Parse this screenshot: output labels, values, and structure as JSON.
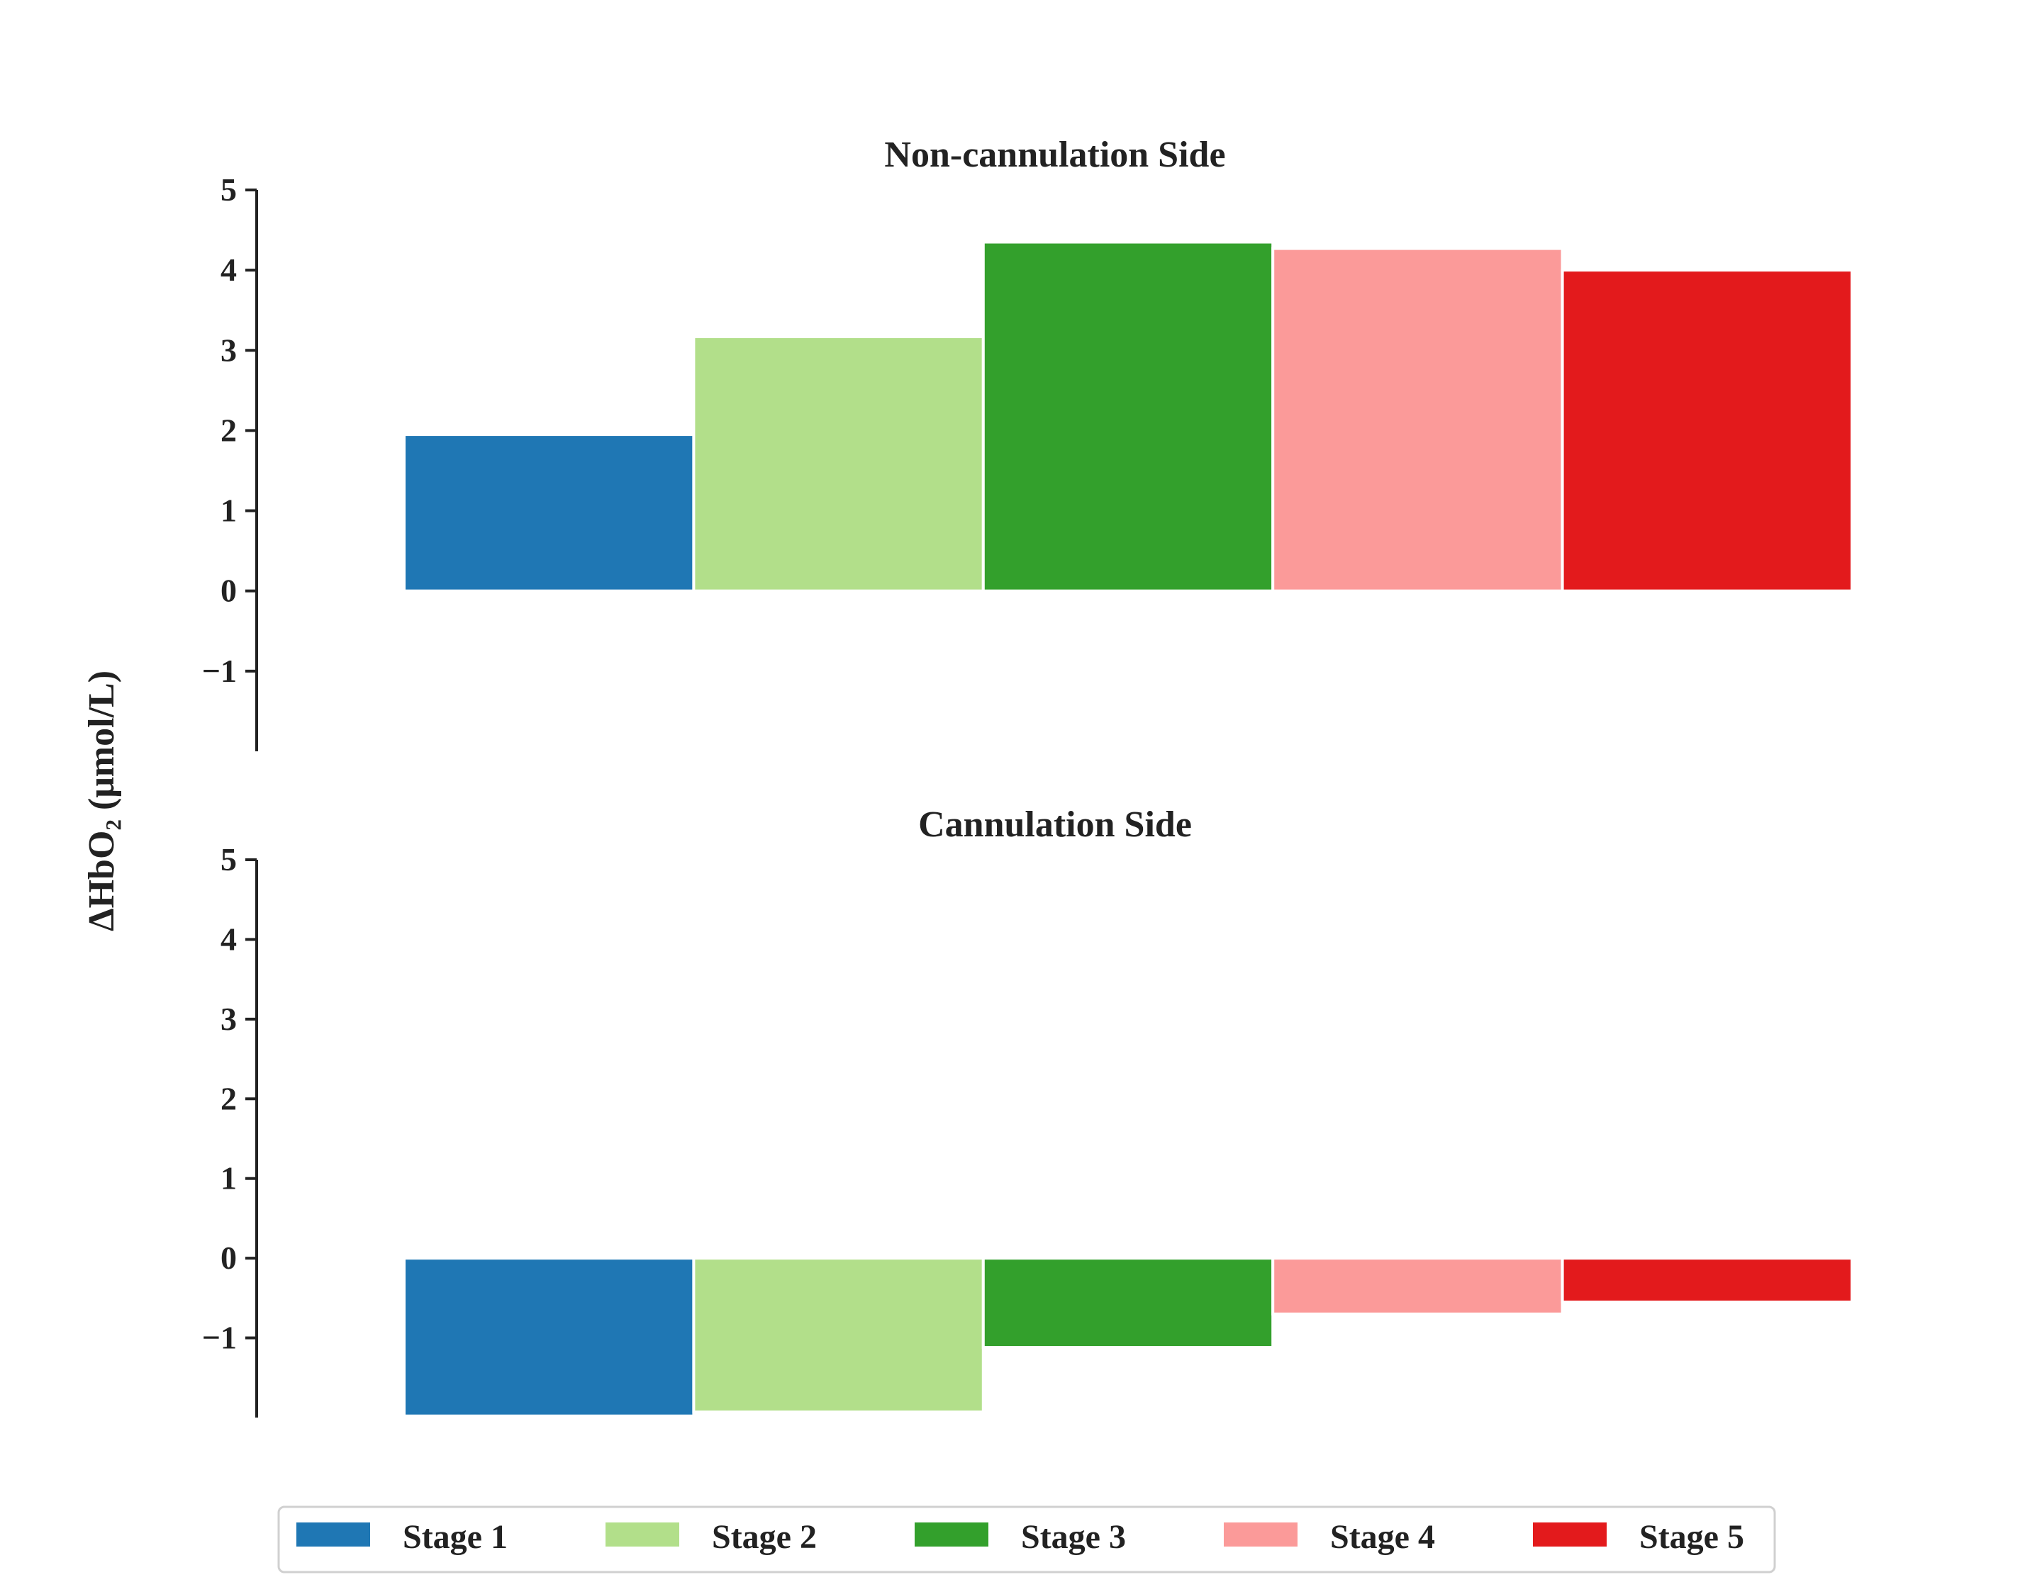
{
  "ylabel": "ΔHbO₂ (μmol/L)",
  "colors": [
    "#1f77b4",
    "#b2df8a",
    "#33a02c",
    "#fb9a99",
    "#e31a1c"
  ],
  "chart_data": [
    {
      "type": "bar",
      "title": "Non-cannulation Side",
      "categories": [
        "Stage 1",
        "Stage 2",
        "Stage 3",
        "Stage 4",
        "Stage 5"
      ],
      "values": [
        1.95,
        3.17,
        4.35,
        4.27,
        4.0
      ],
      "yticks": [
        -1,
        0,
        1,
        2,
        3,
        4,
        5
      ],
      "ytick_labels": [
        "−1",
        "0",
        "1",
        "2",
        "3",
        "4",
        "5"
      ],
      "ylim": [
        -2,
        5
      ],
      "grid": false
    },
    {
      "type": "bar",
      "title": "Cannulation Side",
      "categories": [
        "Stage 1",
        "Stage 2",
        "Stage 3",
        "Stage 4",
        "Stage 5"
      ],
      "values": [
        -1.98,
        -1.93,
        -1.12,
        -0.7,
        -0.55
      ],
      "yticks": [
        -1,
        0,
        1,
        2,
        3,
        4,
        5
      ],
      "ytick_labels": [
        "−1",
        "0",
        "1",
        "2",
        "3",
        "4",
        "5"
      ],
      "ylim": [
        -2,
        5
      ],
      "grid": false
    }
  ],
  "legend": {
    "placement": "bottom-center",
    "entries": [
      "Stage 1",
      "Stage 2",
      "Stage 3",
      "Stage 4",
      "Stage 5"
    ]
  }
}
